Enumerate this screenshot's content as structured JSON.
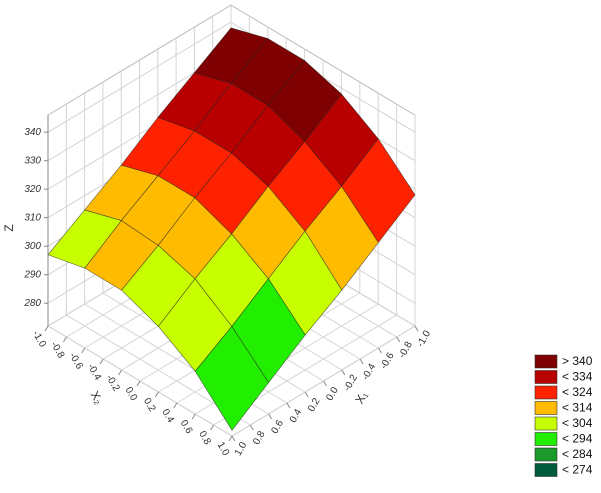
{
  "chart_data": {
    "type": "surface",
    "zlabel": "Z",
    "x1label": "X₁",
    "x2label": "X₂",
    "x1": [
      -1,
      -0.6,
      -0.2,
      0.2,
      0.6,
      1
    ],
    "x2": [
      -1,
      -0.6,
      -0.2,
      0.2,
      0.6,
      1
    ],
    "z": [
      [
        338,
        342,
        342,
        338,
        330,
        318
      ],
      [
        330,
        334,
        334,
        329,
        321,
        309
      ],
      [
        322,
        325,
        325,
        321,
        313,
        300
      ],
      [
        313,
        317,
        317,
        312,
        304,
        292
      ],
      [
        305,
        309,
        308,
        304,
        295,
        283
      ],
      [
        297,
        300,
        300,
        295,
        287,
        274
      ]
    ],
    "x1lim": [
      -1,
      1
    ],
    "x2lim": [
      -1,
      1
    ],
    "zlim": [
      272,
      346
    ],
    "x1ticks": [
      {
        "value": -1,
        "label": "-1.0"
      },
      -0.8,
      -0.6,
      -0.4,
      -0.2,
      {
        "value": 0,
        "label": "0.0"
      },
      0.2,
      0.4,
      0.6,
      0.8,
      {
        "value": 1,
        "label": "1.0"
      }
    ],
    "x2ticks": [
      {
        "value": -1,
        "label": "-1.0"
      },
      -0.8,
      -0.6,
      -0.4,
      -0.2,
      {
        "value": 0,
        "label": "0.0"
      },
      0.2,
      0.4,
      0.6,
      0.8,
      {
        "value": 1,
        "label": "1.0"
      }
    ],
    "zticks": [
      280,
      290,
      300,
      310,
      320,
      330,
      340
    ],
    "grid": true,
    "legend": [
      {
        "value": 340,
        "label": "> 340",
        "color": "#7f0000"
      },
      {
        "value": 334,
        "label": "< 334",
        "color": "#b80000"
      },
      {
        "value": 324,
        "label": "< 324",
        "color": "#ff2200"
      },
      {
        "value": 314,
        "label": "< 314",
        "color": "#ffbb00"
      },
      {
        "value": 304,
        "label": "< 304",
        "color": "#c8ff00"
      },
      {
        "value": 294,
        "label": "< 294",
        "color": "#22ee00"
      },
      {
        "value": 284,
        "label": "< 284",
        "color": "#1a9a2a"
      },
      {
        "value": 274,
        "label": "< 274",
        "color": "#005a3c"
      }
    ]
  }
}
